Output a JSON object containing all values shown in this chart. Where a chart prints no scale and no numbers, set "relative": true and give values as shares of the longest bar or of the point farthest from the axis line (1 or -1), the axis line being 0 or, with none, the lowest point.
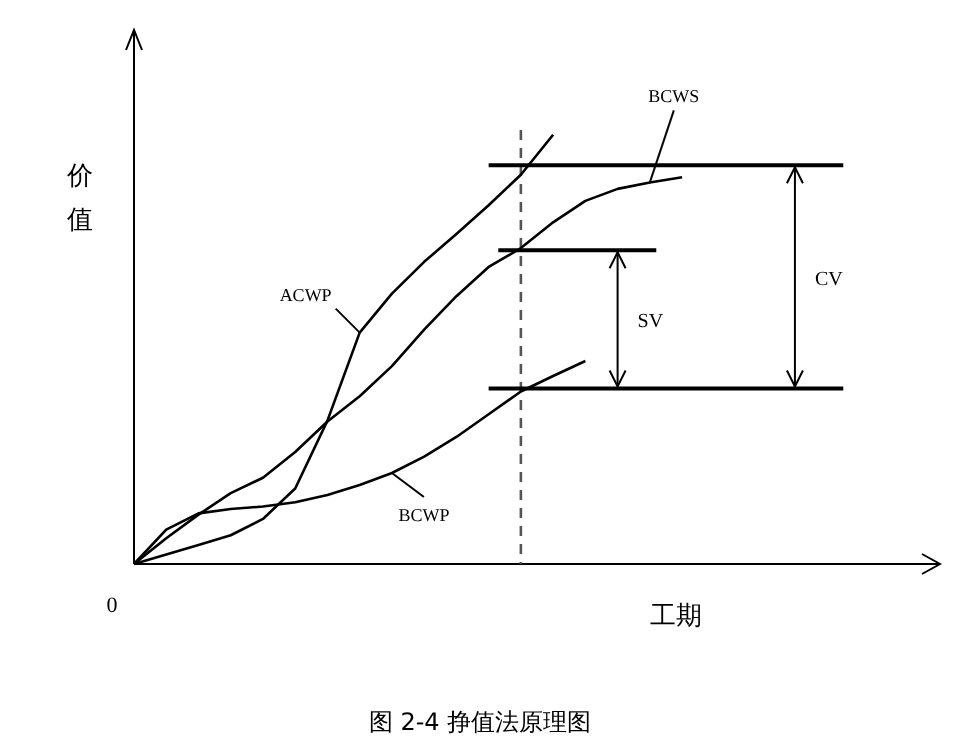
{
  "chart_data": {
    "type": "line",
    "relative": true,
    "xlabel": "工期",
    "ylabel": "价值",
    "marker": "none",
    "line_style": "solid",
    "categories": [
      null,
      null,
      null,
      null,
      null,
      null,
      null,
      null,
      null,
      null,
      null,
      null,
      null,
      null,
      null,
      null,
      null,
      null,
      null
    ],
    "series": [
      {
        "name": "ACWP",
        "color": "#000000",
        "values": [
          0,
          0.022,
          0.044,
          0.067,
          0.105,
          0.176,
          0.334,
          0.539,
          0.63,
          0.704,
          0.769,
          0.836,
          0.907,
          1.0,
          null,
          null,
          null,
          null,
          null
        ]
      },
      {
        "name": "BCWS",
        "color": "#000000",
        "values": [
          0,
          0.06,
          0.115,
          0.165,
          0.201,
          0.261,
          0.332,
          0.391,
          0.461,
          0.546,
          0.624,
          0.692,
          0.736,
          0.796,
          0.846,
          0.874,
          0.889,
          0.901,
          null
        ]
      },
      {
        "name": "BCWP",
        "color": "#000000",
        "values": [
          0,
          0.08,
          0.118,
          0.128,
          0.134,
          0.144,
          0.161,
          0.184,
          0.212,
          0.25,
          0.296,
          0.349,
          0.402,
          0.438,
          0.473,
          null,
          null,
          null,
          null
        ]
      }
    ],
    "ref_lines": [
      {
        "axis": "y",
        "value": 0.929,
        "color": "#000000"
      },
      {
        "axis": "y",
        "value": 0.731,
        "color": "#000000"
      },
      {
        "axis": "y",
        "value": 0.409,
        "color": "#000000"
      }
    ],
    "annotations": [
      "0",
      "图 2-4 挣值法原理图",
      "SV",
      "CV"
    ]
  }
}
